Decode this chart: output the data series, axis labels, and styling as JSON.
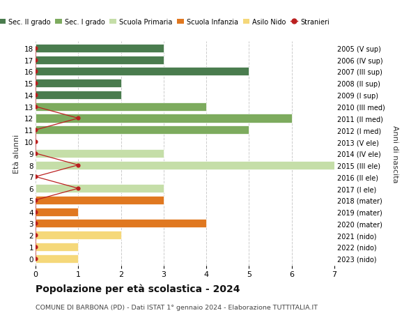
{
  "ages": [
    18,
    17,
    16,
    15,
    14,
    13,
    12,
    11,
    10,
    9,
    8,
    7,
    6,
    5,
    4,
    3,
    2,
    1,
    0
  ],
  "right_labels": [
    "2005 (V sup)",
    "2006 (IV sup)",
    "2007 (III sup)",
    "2008 (II sup)",
    "2009 (I sup)",
    "2010 (III med)",
    "2011 (II med)",
    "2012 (I med)",
    "2013 (V ele)",
    "2014 (IV ele)",
    "2015 (III ele)",
    "2016 (II ele)",
    "2017 (I ele)",
    "2018 (mater)",
    "2019 (mater)",
    "2020 (mater)",
    "2021 (nido)",
    "2022 (nido)",
    "2023 (nido)"
  ],
  "bar_values": [
    3,
    3,
    5,
    2,
    2,
    4,
    6,
    5,
    0,
    3,
    7,
    0,
    3,
    3,
    1,
    4,
    2,
    1,
    1
  ],
  "bar_colors": [
    "#4a7c4e",
    "#4a7c4e",
    "#4a7c4e",
    "#4a7c4e",
    "#4a7c4e",
    "#7dab5e",
    "#7dab5e",
    "#7dab5e",
    "#c5dea8",
    "#c5dea8",
    "#c5dea8",
    "#c5dea8",
    "#c5dea8",
    "#e07820",
    "#e07820",
    "#e07820",
    "#f5d87a",
    "#f5d87a",
    "#f5d87a"
  ],
  "stranieri_ages": [
    18,
    17,
    16,
    15,
    14,
    13,
    12,
    11,
    10,
    9,
    8,
    7,
    6,
    5,
    4,
    3,
    2,
    1,
    0
  ],
  "stranieri_x": [
    0,
    0,
    0,
    0,
    0,
    0,
    1,
    0,
    0,
    0,
    1,
    0,
    1,
    0,
    0,
    0,
    0,
    0,
    0
  ],
  "title": "Popolazione per età scolastica - 2024",
  "subtitle": "COMUNE DI BARBONA (PD) - Dati ISTAT 1° gennaio 2024 - Elaborazione TUTTITALIA.IT",
  "xlabel_label": "Età alunni",
  "ylabel_right": "Anni di nascita",
  "legend_labels": [
    "Sec. II grado",
    "Sec. I grado",
    "Scuola Primaria",
    "Scuola Infanzia",
    "Asilo Nido",
    "Stranieri"
  ],
  "color_sec2": "#4a7c4e",
  "color_sec1": "#7dab5e",
  "color_primaria": "#c5dea8",
  "color_infanzia": "#e07820",
  "color_nido": "#f5d87a",
  "color_stranieri": "#bb2020",
  "xlim": [
    0,
    7
  ],
  "bg_color": "#ffffff",
  "grid_color": "#cccccc"
}
